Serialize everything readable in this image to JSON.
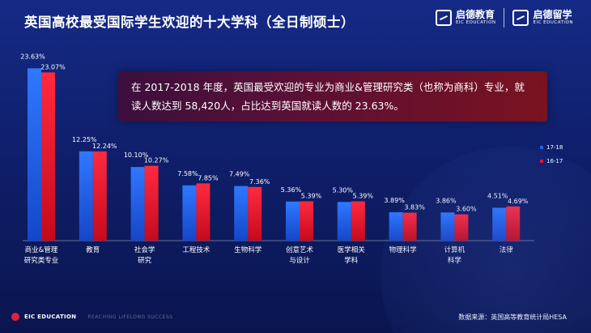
{
  "title": "英国高校最受国际学生欢迎的十大学科（全日制硕士）",
  "logos": [
    {
      "cn": "启德教育",
      "en": "EIC EDUCATION"
    },
    {
      "cn": "启德留学",
      "en": "EIC EDUCATION"
    }
  ],
  "callout": "在 2017-2018 年度，英国最受欢迎的专业为商业&管理研究类（也称为商科）专业，就读人数达到 58,420人，占比达到英国就读人数的 23.63%。",
  "footer": {
    "brand": "EIC EDUCATION",
    "slogan": "REACHING LIFELONG SUCCESS",
    "source": "数据来源：英国高等教育统计局HESA"
  },
  "colors": {
    "series_17_18": "#1e63f0",
    "series_16_17": "#e8102a",
    "background": "#12257a"
  },
  "chart_data": {
    "type": "bar",
    "title": "英国高校最受国际学生欢迎的十大学科（全日制硕士）",
    "categories": [
      [
        "商业&管理",
        "研究类专业"
      ],
      [
        "教育"
      ],
      [
        "社会学",
        "研究"
      ],
      [
        "工程技术"
      ],
      [
        "生物科学"
      ],
      [
        "创意艺术",
        "与设计"
      ],
      [
        "医学相关",
        "学科"
      ],
      [
        "物理科学"
      ],
      [
        "计算机",
        "科学"
      ],
      [
        "法律"
      ]
    ],
    "series": [
      {
        "name": "17-18",
        "values": [
          23.63,
          12.25,
          10.1,
          7.58,
          7.49,
          5.36,
          5.3,
          3.89,
          3.86,
          4.51
        ],
        "labels": [
          "23.63%",
          "12.25%",
          "10.10%",
          "7.58%",
          "7.49%",
          "5.36%",
          "5.30%",
          "3.89%",
          "3.86%",
          "4.51%"
        ]
      },
      {
        "name": "16-17",
        "values": [
          23.07,
          12.24,
          10.27,
          7.85,
          7.36,
          5.39,
          5.39,
          3.83,
          3.6,
          4.69
        ],
        "labels": [
          "23.07%",
          "12.24%",
          "10.27%",
          "7.85%",
          "7.36%",
          "5.39%",
          "5.39%",
          "3.83%",
          "3.60%",
          "4.69%"
        ]
      }
    ],
    "ylim": [
      0,
      24
    ],
    "legend": "right",
    "grid": false
  }
}
